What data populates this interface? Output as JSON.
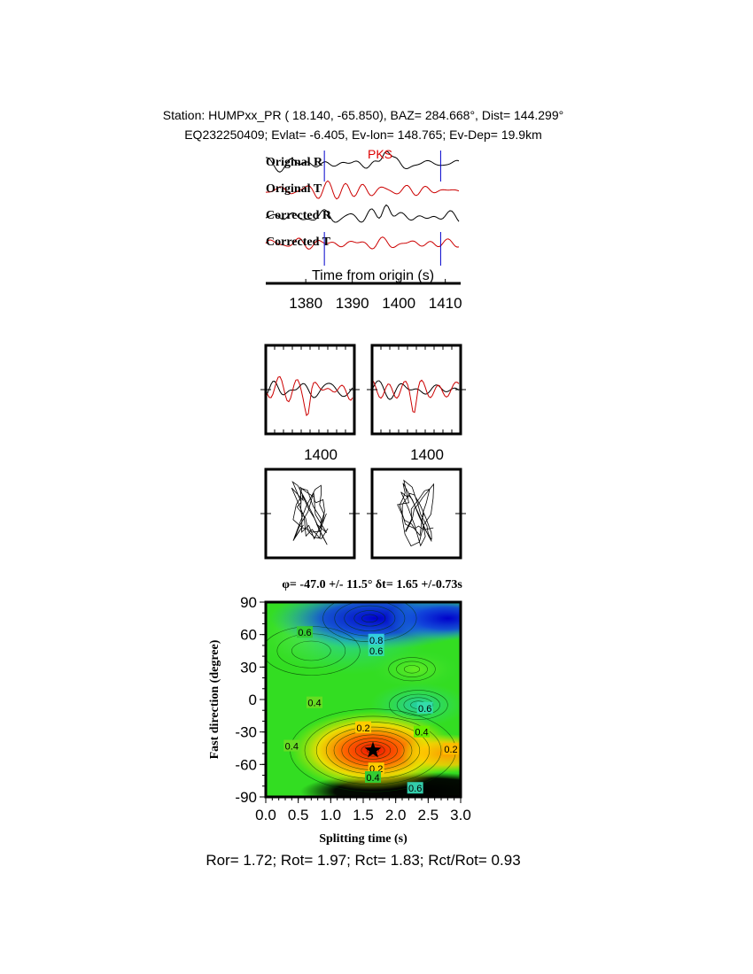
{
  "header": {
    "line1": "Station: HUMPxx_PR (  18.140,  -65.850), BAZ=  284.668°, Dist=  144.299°",
    "line2": "EQ232250409; Evlat=  -6.405, Ev-lon= 148.765; Ev-Dep= 19.9km"
  },
  "traces": {
    "labels": [
      "Original R",
      "Original T",
      "Corrected R",
      "Corrected T"
    ],
    "phase_label": "PKS",
    "xlabel": "Time from origin (s)",
    "xticks": [
      "1380",
      "1390",
      "1400",
      "1410"
    ],
    "window": [
      1384,
      1409
    ],
    "colors": {
      "R": "#000000",
      "T": "#cc0000",
      "window": "#0000cc",
      "phase": "#dd0000"
    }
  },
  "waveform_panels": {
    "tick_label": "1400"
  },
  "chart_data": {
    "type": "heatmap",
    "title": "φ= -47.0 +/- 11.5° δt= 1.65 +/-0.73s",
    "xlabel": "Splitting time (s)",
    "ylabel": "Fast direction (degree)",
    "xlim": [
      0.0,
      3.0
    ],
    "ylim": [
      -90,
      90
    ],
    "xticks": [
      "0.0",
      "0.5",
      "1.0",
      "1.5",
      "2.0",
      "2.5",
      "3.0"
    ],
    "yticks": [
      "90",
      "60",
      "30",
      "0",
      "-30",
      "-60",
      "-90"
    ],
    "best_fit": {
      "dt": 1.65,
      "phi": -47.0
    },
    "contour_labels": [
      {
        "text": "0.6",
        "x": 0.6,
        "y": 62,
        "color": "#33cc33"
      },
      {
        "text": "0.8",
        "x": 1.7,
        "y": 55,
        "color": "#33ccdd"
      },
      {
        "text": "0.6",
        "x": 1.7,
        "y": 45,
        "color": "#33ddaa"
      },
      {
        "text": "0.4",
        "x": 0.75,
        "y": -3,
        "color": "#66dd22"
      },
      {
        "text": "0.6",
        "x": 2.45,
        "y": -8,
        "color": "#33ddaa"
      },
      {
        "text": "0.2",
        "x": 1.5,
        "y": -26,
        "color": "#ffcc00"
      },
      {
        "text": "0.4",
        "x": 2.4,
        "y": -30,
        "color": "#66ee00"
      },
      {
        "text": "0.4",
        "x": 0.4,
        "y": -43,
        "color": "#66dd22"
      },
      {
        "text": "0.2",
        "x": 2.85,
        "y": -46,
        "color": "#ffbb00"
      },
      {
        "text": "0.2",
        "x": 1.7,
        "y": -64,
        "color": "#ffcc00"
      },
      {
        "text": "0.4",
        "x": 1.65,
        "y": -72,
        "color": "#33cc33"
      },
      {
        "text": "0.6",
        "x": 2.3,
        "y": -82,
        "color": "#33ccaa"
      }
    ]
  },
  "footer": "Ror= 1.72; Rot= 1.97; Rct= 1.83; Rct/Rot= 0.93"
}
